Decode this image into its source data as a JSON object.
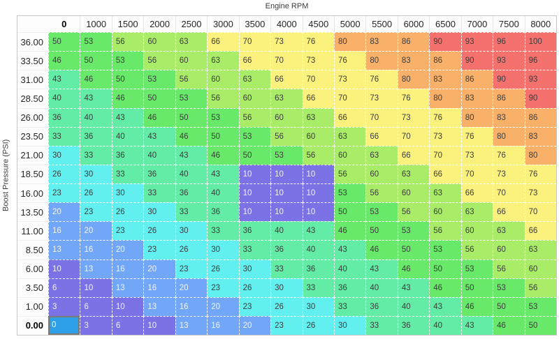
{
  "chart_data": {
    "type": "heatmap",
    "x_axis_label": "Engine RPM",
    "y_axis_label": "Boost Pressure (PSI)",
    "column_headers": [
      "0",
      "1000",
      "1500",
      "2000",
      "2500",
      "3000",
      "3500",
      "4000",
      "4500",
      "5000",
      "5500",
      "6000",
      "6500",
      "7000",
      "7500",
      "8000"
    ],
    "row_headers": [
      "36.00",
      "33.50",
      "31.00",
      "28.50",
      "26.00",
      "23.50",
      "21.00",
      "18.50",
      "16.00",
      "13.50",
      "11.00",
      "8.50",
      "6.00",
      "3.50",
      "1.00",
      "0.00"
    ],
    "values": [
      [
        50,
        53,
        56,
        60,
        63,
        66,
        70,
        73,
        76,
        80,
        83,
        86,
        90,
        93,
        96,
        100
      ],
      [
        46,
        50,
        53,
        56,
        60,
        63,
        66,
        70,
        73,
        76,
        80,
        83,
        86,
        90,
        93,
        96
      ],
      [
        43,
        46,
        50,
        53,
        56,
        60,
        63,
        66,
        70,
        73,
        76,
        80,
        83,
        86,
        90,
        93
      ],
      [
        40,
        43,
        46,
        50,
        53,
        56,
        60,
        63,
        66,
        70,
        73,
        76,
        80,
        83,
        86,
        90
      ],
      [
        36,
        40,
        43,
        46,
        50,
        53,
        56,
        60,
        63,
        66,
        70,
        73,
        76,
        80,
        83,
        86
      ],
      [
        33,
        36,
        40,
        43,
        46,
        50,
        53,
        56,
        60,
        63,
        66,
        70,
        73,
        76,
        80,
        83
      ],
      [
        30,
        33,
        36,
        40,
        43,
        46,
        50,
        53,
        56,
        60,
        63,
        66,
        70,
        73,
        76,
        80
      ],
      [
        26,
        30,
        33,
        36,
        40,
        43,
        10,
        10,
        10,
        56,
        60,
        63,
        66,
        70,
        73,
        76
      ],
      [
        23,
        26,
        30,
        33,
        36,
        40,
        10,
        10,
        10,
        53,
        56,
        60,
        63,
        66,
        70,
        73
      ],
      [
        20,
        23,
        26,
        30,
        33,
        36,
        10,
        10,
        10,
        50,
        53,
        56,
        60,
        63,
        66,
        70
      ],
      [
        16,
        20,
        23,
        26,
        30,
        33,
        36,
        40,
        43,
        46,
        50,
        53,
        56,
        60,
        63,
        66
      ],
      [
        13,
        16,
        20,
        23,
        26,
        30,
        33,
        36,
        40,
        43,
        46,
        50,
        53,
        56,
        60,
        63
      ],
      [
        10,
        13,
        16,
        20,
        23,
        26,
        30,
        33,
        36,
        40,
        43,
        46,
        50,
        53,
        56,
        60
      ],
      [
        6,
        10,
        13,
        16,
        20,
        23,
        26,
        30,
        33,
        36,
        40,
        43,
        46,
        50,
        53,
        56
      ],
      [
        3,
        6,
        10,
        13,
        16,
        20,
        23,
        26,
        30,
        33,
        36,
        40,
        43,
        46,
        50,
        53
      ],
      [
        0,
        3,
        6,
        10,
        13,
        16,
        20,
        23,
        26,
        30,
        33,
        36,
        40,
        43,
        46,
        50
      ]
    ],
    "color_scale": [
      {
        "max": 12,
        "bg": "#7b72e6",
        "text": "#f2f2f8"
      },
      {
        "max": 22,
        "bg": "#72a6f7",
        "text": "#f2f5fb"
      },
      {
        "max": 32,
        "bg": "#62efef",
        "text": "#3d3d3d"
      },
      {
        "max": 45,
        "bg": "#63eca5",
        "text": "#3d3d3d"
      },
      {
        "max": 55,
        "bg": "#69e969",
        "text": "#3d3d3d"
      },
      {
        "max": 65,
        "bg": "#a8ec68",
        "text": "#3d3d3d"
      },
      {
        "max": 78,
        "bg": "#fbf17d",
        "text": "#3d3d3d"
      },
      {
        "max": 88,
        "bg": "#f9b169",
        "text": "#3d3d3d"
      },
      {
        "max": 100,
        "bg": "#f4716e",
        "text": "#3d3d3d"
      }
    ],
    "selected_cell": {
      "row_index": 15,
      "col_index": 0,
      "row_label": "0.00",
      "col_label": "0",
      "value": 0,
      "background": "#2c9fe8",
      "border": "#7a7a74",
      "text_color": "#ffffff"
    },
    "grid_line_color": "#ffffff",
    "grid_line_style": "dashed",
    "layout": {
      "x_axis_position": "top",
      "y_axis_position": "left",
      "legend": "none",
      "grid": "on"
    }
  }
}
